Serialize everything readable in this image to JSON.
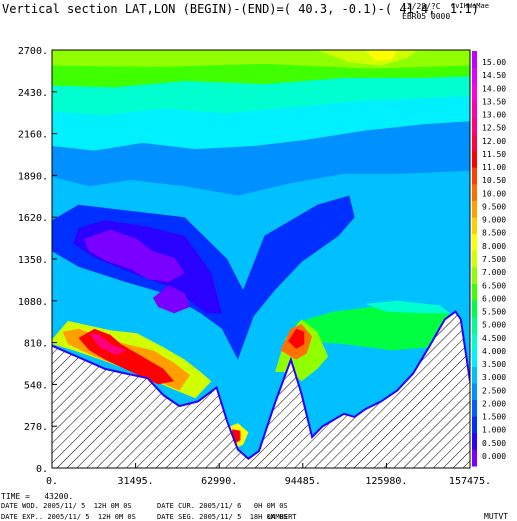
{
  "header": {
    "title": "Vertical section LAT,LON (BEGIN)-(END)=( 40.3, -0.1)-( 41.4,  1.1)",
    "date_code": "12/28/?C",
    "code": "CvIHWeMae",
    "run_label": "EBR05 0000"
  },
  "footer": {
    "time": "TIME =   43200.",
    "date_wod": "DATE WOD. 2005/11/ 5  12H 0M 0S",
    "date_cur": "DATE CUR. 2005/11/ 6   0H 0M 0S",
    "date_exp": "DATE EXP.. 2005/11/ 5  12H 0M 0S",
    "date_seg": "DATE SEG. 2005/11/ 5  18H 0M 0S",
    "projection": "LAMBERT",
    "tag": "MUTVT"
  },
  "chart_data": {
    "type": "heatmap",
    "title": "Vertical section LAT,LON (BEGIN)-(END)=( 40.3, -0.1)-( 41.4,  1.1)",
    "xlabel": "",
    "ylabel": "",
    "xlim": [
      0,
      157475
    ],
    "ylim": [
      0,
      2700
    ],
    "xticks": [
      "31495.",
      "62990.",
      "94485.",
      "125980.",
      "157475."
    ],
    "xtick_values": [
      31495,
      62990,
      94485,
      125980,
      157475
    ],
    "yticks": [
      "0.",
      "270.",
      "540.",
      "810.",
      "1080.",
      "1350.",
      "1620.",
      "1890.",
      "2160.",
      "2430.",
      "2700."
    ],
    "ytick_values": [
      0,
      270,
      540,
      810,
      1080,
      1350,
      1620,
      1890,
      2160,
      2430,
      2700
    ],
    "colorbar_labels": [
      "0.000",
      "0.500",
      "1.000",
      "1.500",
      "2.000",
      "2.500",
      "3.000",
      "3.500",
      "4.000",
      "4.500",
      "5.000",
      "5.500",
      "6.000",
      "6.500",
      "7.000",
      "7.500",
      "8.000",
      "8.500",
      "9.000",
      "9.500",
      "10.00",
      "10.50",
      "11.00",
      "11.50",
      "12.00",
      "12.50",
      "13.00",
      "13.50",
      "14.00",
      "14.50",
      "15.00"
    ],
    "colorbar_colors": [
      "#7a00ff",
      "#2a00ff",
      "#0030ff",
      "#0060ff",
      "#0090ff",
      "#00c0ff",
      "#00f0ff",
      "#00ffd0",
      "#00ff90",
      "#00ff40",
      "#40ff00",
      "#90ff00",
      "#d0ff00",
      "#ffff00",
      "#ffd000",
      "#ffa000",
      "#ff7000",
      "#ff4000",
      "#ff0000",
      "#ff0040",
      "#ff0080",
      "#ff00b0",
      "#ff00e0",
      "#e000ff",
      "#c000ff"
    ],
    "terrain": {
      "x": [
        0,
        4000,
        12000,
        20000,
        28000,
        36000,
        42000,
        48000,
        55000,
        62000,
        66000,
        70000,
        74000,
        78000,
        84000,
        90000,
        94000,
        98000,
        102000,
        106000,
        110000,
        114000,
        118000,
        124000,
        130000,
        136000,
        142000,
        148000,
        152000,
        154000,
        157475
      ],
      "y": [
        790,
        760,
        700,
        640,
        610,
        580,
        470,
        400,
        430,
        520,
        300,
        120,
        60,
        110,
        420,
        700,
        480,
        200,
        270,
        310,
        350,
        330,
        380,
        430,
        500,
        610,
        780,
        960,
        1010,
        960,
        560
      ]
    },
    "contours": [
      {
        "level": "2.000",
        "color": "#0090ff",
        "points": [
          [
            0,
            1880
          ],
          [
            14000,
            1820
          ],
          [
            30000,
            1860
          ],
          [
            50000,
            1820
          ],
          [
            70000,
            1760
          ],
          [
            90000,
            1840
          ],
          [
            110000,
            1900
          ],
          [
            130000,
            1900
          ],
          [
            157475,
            1920
          ],
          [
            157475,
            2700
          ],
          [
            0,
            2700
          ]
        ]
      },
      {
        "level": "3.000",
        "color": "#00f0ff",
        "points": [
          [
            0,
            2080
          ],
          [
            16000,
            2050
          ],
          [
            34000,
            2100
          ],
          [
            54000,
            2060
          ],
          [
            76000,
            2080
          ],
          [
            96000,
            2120
          ],
          [
            118000,
            2180
          ],
          [
            140000,
            2220
          ],
          [
            157475,
            2240
          ],
          [
            157475,
            2700
          ],
          [
            0,
            2700
          ]
        ]
      },
      {
        "level": "4.000",
        "color": "#00ffd0",
        "points": [
          [
            0,
            2300
          ],
          [
            20000,
            2280
          ],
          [
            42000,
            2320
          ],
          [
            66000,
            2290
          ],
          [
            90000,
            2330
          ],
          [
            116000,
            2370
          ],
          [
            140000,
            2390
          ],
          [
            157475,
            2400
          ],
          [
            157475,
            2700
          ],
          [
            0,
            2700
          ]
        ]
      },
      {
        "level": "5.000",
        "color": "#40ff00",
        "points": [
          [
            0,
            2470
          ],
          [
            24000,
            2460
          ],
          [
            50000,
            2500
          ],
          [
            80000,
            2480
          ],
          [
            110000,
            2520
          ],
          [
            140000,
            2520
          ],
          [
            157475,
            2530
          ],
          [
            157475,
            2700
          ],
          [
            0,
            2700
          ]
        ]
      },
      {
        "level": "6.000",
        "color": "#90ff00",
        "points": [
          [
            0,
            2600
          ],
          [
            40000,
            2590
          ],
          [
            80000,
            2610
          ],
          [
            120000,
            2580
          ],
          [
            157475,
            2600
          ],
          [
            157475,
            2700
          ],
          [
            0,
            2700
          ]
        ]
      },
      {
        "level": "7.000",
        "color": "#d0ff00",
        "points": [
          [
            100000,
            2700
          ],
          [
            112000,
            2620
          ],
          [
            124000,
            2600
          ],
          [
            134000,
            2650
          ],
          [
            138000,
            2700
          ]
        ]
      },
      {
        "level": "8.000",
        "color": "#ffff00",
        "points": [
          [
            118000,
            2700
          ],
          [
            122000,
            2630
          ],
          [
            128000,
            2640
          ],
          [
            130000,
            2700
          ]
        ]
      },
      {
        "level": "1.000",
        "color": "#0030ff",
        "points": [
          [
            0,
            1600
          ],
          [
            10000,
            1700
          ],
          [
            30000,
            1660
          ],
          [
            50000,
            1620
          ],
          [
            66000,
            1350
          ],
          [
            72000,
            1150
          ],
          [
            80000,
            1500
          ],
          [
            100000,
            1700
          ],
          [
            112000,
            1760
          ],
          [
            114000,
            1620
          ],
          [
            108000,
            1500
          ],
          [
            94000,
            1330
          ],
          [
            84000,
            1150
          ],
          [
            76000,
            980
          ],
          [
            70000,
            700
          ],
          [
            64000,
            900
          ],
          [
            56000,
            1000
          ],
          [
            44000,
            1120
          ],
          [
            28000,
            1200
          ],
          [
            10000,
            1300
          ],
          [
            0,
            1400
          ]
        ]
      },
      {
        "level": "0.500",
        "color": "#2a00ff",
        "points": [
          [
            10000,
            1550
          ],
          [
            20000,
            1600
          ],
          [
            36000,
            1560
          ],
          [
            50000,
            1500
          ],
          [
            60000,
            1260
          ],
          [
            64000,
            1000
          ],
          [
            58000,
            1000
          ],
          [
            46000,
            1160
          ],
          [
            30000,
            1260
          ],
          [
            16000,
            1360
          ],
          [
            8000,
            1450
          ]
        ]
      },
      {
        "level": "0.000",
        "color": "#7a00ff",
        "points": [
          [
            12000,
            1480
          ],
          [
            22000,
            1540
          ],
          [
            32000,
            1480
          ],
          [
            38000,
            1400
          ],
          [
            46000,
            1360
          ],
          [
            50000,
            1260
          ],
          [
            44000,
            1200
          ],
          [
            36000,
            1220
          ],
          [
            30000,
            1280
          ],
          [
            20000,
            1340
          ],
          [
            14000,
            1400
          ]
        ]
      },
      {
        "level": "0.000b",
        "color": "#7a00ff",
        "points": [
          [
            38000,
            1100
          ],
          [
            44000,
            1180
          ],
          [
            50000,
            1130
          ],
          [
            52000,
            1040
          ],
          [
            46000,
            1000
          ],
          [
            40000,
            1040
          ]
        ]
      },
      {
        "level": "4.500",
        "color": "#00ff40",
        "points": [
          [
            92000,
            940
          ],
          [
            106000,
            1010
          ],
          [
            120000,
            1040
          ],
          [
            136000,
            1030
          ],
          [
            146000,
            1010
          ],
          [
            150000,
            1000
          ],
          [
            142000,
            780
          ],
          [
            128000,
            760
          ],
          [
            110000,
            800
          ],
          [
            96000,
            820
          ]
        ]
      },
      {
        "level": "3.500",
        "color": "#00ffd0",
        "points": [
          [
            118000,
            1060
          ],
          [
            130000,
            1080
          ],
          [
            146000,
            1050
          ],
          [
            150000,
            1000
          ],
          [
            140000,
            1000
          ],
          [
            126000,
            1010
          ]
        ]
      },
      {
        "level": "6.500",
        "color": "#d0ff00",
        "points": [
          [
            0,
            830
          ],
          [
            6000,
            950
          ],
          [
            14000,
            920
          ],
          [
            22000,
            890
          ],
          [
            32000,
            870
          ],
          [
            42000,
            780
          ],
          [
            50000,
            700
          ],
          [
            56000,
            620
          ],
          [
            60000,
            560
          ],
          [
            54000,
            450
          ],
          [
            44000,
            520
          ],
          [
            34000,
            600
          ],
          [
            20000,
            690
          ],
          [
            8000,
            760
          ],
          [
            0,
            800
          ]
        ]
      },
      {
        "level": "8.500",
        "color": "#ffa000",
        "points": [
          [
            4000,
            880
          ],
          [
            10000,
            900
          ],
          [
            18000,
            850
          ],
          [
            28000,
            800
          ],
          [
            38000,
            760
          ],
          [
            46000,
            680
          ],
          [
            52000,
            600
          ],
          [
            48000,
            500
          ],
          [
            40000,
            560
          ],
          [
            28000,
            640
          ],
          [
            16000,
            720
          ],
          [
            6000,
            800
          ]
        ]
      },
      {
        "level": "10.50",
        "color": "#ff0000",
        "points": [
          [
            10000,
            840
          ],
          [
            16000,
            900
          ],
          [
            22000,
            860
          ],
          [
            26000,
            800
          ],
          [
            34000,
            720
          ],
          [
            42000,
            640
          ],
          [
            46000,
            560
          ],
          [
            40000,
            540
          ],
          [
            30000,
            620
          ],
          [
            20000,
            700
          ],
          [
            14000,
            760
          ]
        ]
      },
      {
        "level": "11.50",
        "color": "#ff0080",
        "points": [
          [
            14000,
            870
          ],
          [
            18000,
            860
          ],
          [
            22000,
            800
          ],
          [
            28000,
            760
          ],
          [
            24000,
            730
          ],
          [
            18000,
            780
          ]
        ]
      },
      {
        "level": "6.000b",
        "color": "#90ff00",
        "points": [
          [
            84000,
            620
          ],
          [
            88000,
            840
          ],
          [
            94000,
            960
          ],
          [
            100000,
            880
          ],
          [
            104000,
            720
          ],
          [
            100000,
            640
          ],
          [
            94000,
            560
          ],
          [
            90000,
            620
          ]
        ]
      },
      {
        "level": "9.000",
        "color": "#ff7000",
        "points": [
          [
            86000,
            760
          ],
          [
            90000,
            900
          ],
          [
            94000,
            930
          ],
          [
            98000,
            850
          ],
          [
            96000,
            740
          ],
          [
            92000,
            700
          ]
        ]
      },
      {
        "level": "11.00",
        "color": "#ff0000",
        "points": [
          [
            89000,
            820
          ],
          [
            92000,
            900
          ],
          [
            95000,
            880
          ],
          [
            95000,
            800
          ],
          [
            92000,
            770
          ]
        ]
      },
      {
        "level": "7.000b",
        "color": "#ffff00",
        "points": [
          [
            64000,
            160
          ],
          [
            66000,
            260
          ],
          [
            70000,
            290
          ],
          [
            74000,
            230
          ],
          [
            72000,
            150
          ],
          [
            68000,
            120
          ]
        ]
      },
      {
        "level": "11.00b",
        "color": "#ff0000",
        "points": [
          [
            67000,
            180
          ],
          [
            68000,
            250
          ],
          [
            71000,
            240
          ],
          [
            71000,
            180
          ],
          [
            69000,
            160
          ]
        ]
      },
      {
        "level": "4.500b",
        "color": "#00ff40",
        "points": [
          [
            108000,
            860
          ],
          [
            114000,
            920
          ],
          [
            120000,
            900
          ],
          [
            120000,
            830
          ],
          [
            114000,
            800
          ]
        ]
      }
    ]
  }
}
